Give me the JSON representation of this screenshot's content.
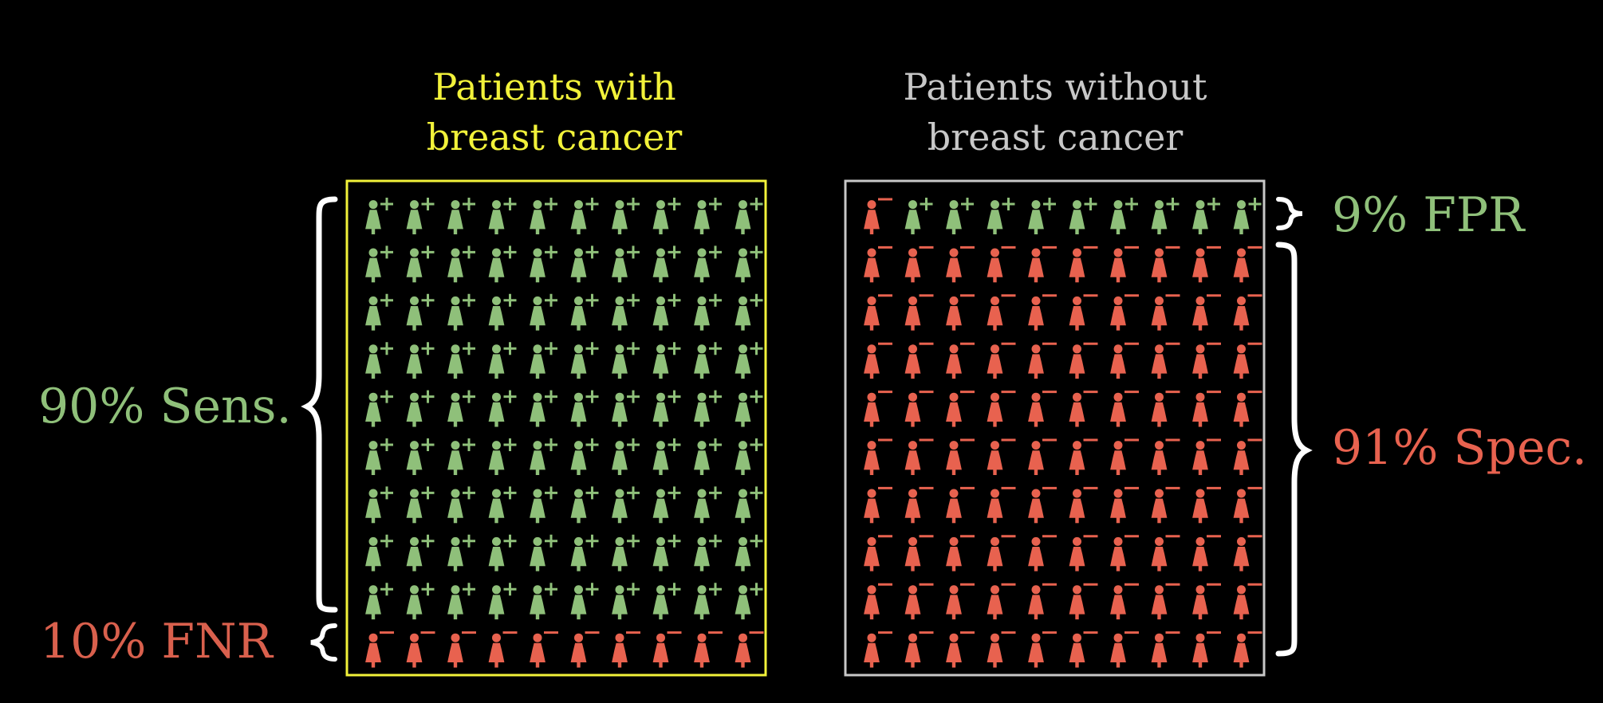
{
  "colors": {
    "background": "#000000",
    "positive": "#8fc07a",
    "negative": "#e8624f",
    "with_cancer_frame": "#f2f23a",
    "without_cancer_frame": "#c8c8c8",
    "brace": "#ffffff"
  },
  "icons": {
    "person": "woman-icon",
    "positive_mark": "plus-sign",
    "negative_mark": "minus-sign"
  },
  "grids": {
    "with_cancer": {
      "title_line1": "Patients with",
      "title_line2": "breast cancer",
      "rows": 10,
      "columns": 10,
      "positive_rows": 9,
      "negative_rows": 1
    },
    "without_cancer": {
      "title_line1": "Patients without",
      "title_line2": "breast cancer",
      "rows": 10,
      "columns": 10,
      "first_row_positive_count": 9,
      "first_row_negative_count": 1,
      "negative_rows": 9
    }
  },
  "labels": {
    "sensitivity": "90% Sens.",
    "fnr": "10% FNR",
    "fpr": "9% FPR",
    "specificity": "91% Spec."
  }
}
